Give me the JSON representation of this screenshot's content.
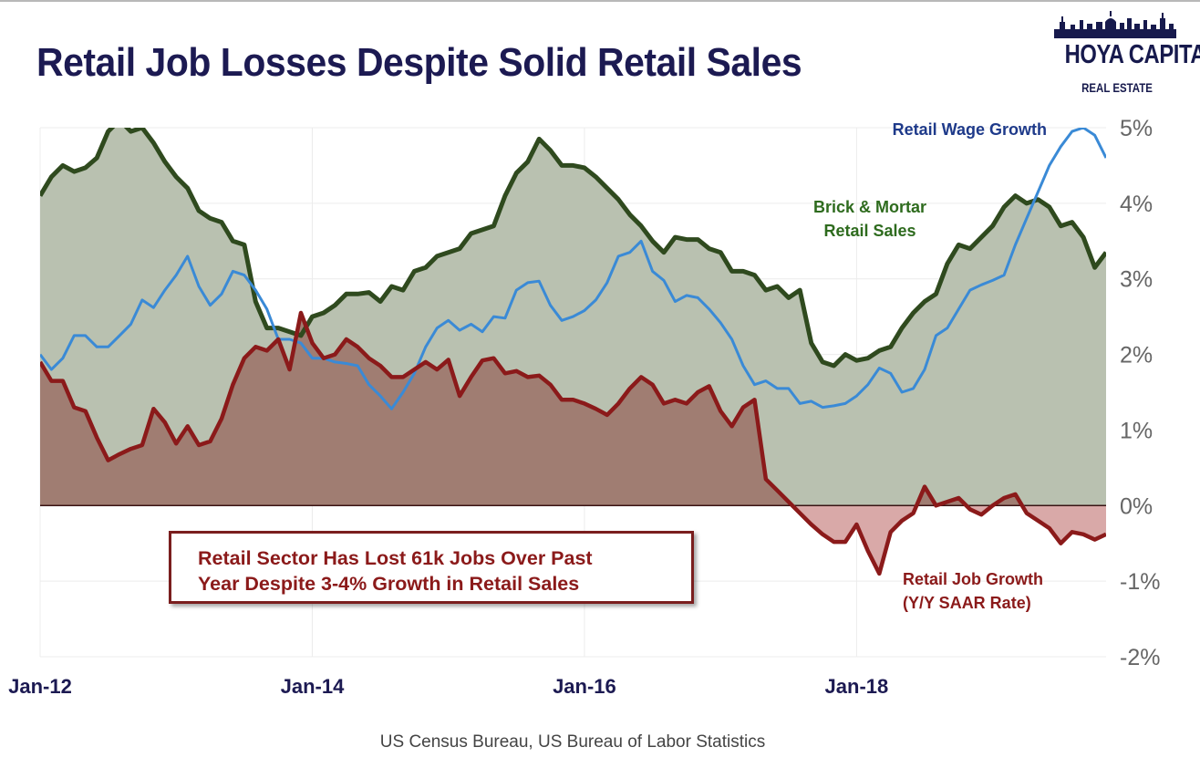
{
  "title": "Retail Job Losses Despite Solid Retail Sales",
  "logo": {
    "main": "HOYA CAPITAL",
    "sub": "REAL ESTATE"
  },
  "annotation": {
    "line1": "Retail Sector Has Lost 61k Jobs Over Past",
    "line2": "Year Despite 3-4% Growth in Retail Sales"
  },
  "source": "US Census Bureau, US Bureau of Labor Statistics",
  "colors": {
    "sales": "#2f4a1e",
    "sales_fill": "#b9c1b0",
    "wage": "#3a8ad6",
    "jobs": "#8b1a1a",
    "jobs_fill_pos": "#a07d72",
    "jobs_fill_neg": "#d9a9a8",
    "title": "#1c1a52",
    "wage_label": "#1e3a8a",
    "sales_label": "#2e6b1e"
  },
  "chart_data": {
    "type": "area",
    "x_start": "2012-01",
    "x_end": "2018-10",
    "x_ticks": [
      "Jan-12",
      "Jan-14",
      "Jan-16",
      "Jan-18"
    ],
    "x_tick_months": [
      0,
      24,
      48,
      72
    ],
    "y_axis_side": "right",
    "ylim": [
      -2,
      5
    ],
    "y_ticks": [
      -2,
      -1,
      0,
      1,
      2,
      3,
      4,
      5
    ],
    "y_tick_labels": [
      "-2%",
      "-1%",
      "0%",
      "1%",
      "2%",
      "3%",
      "4%",
      "5%"
    ],
    "grid": true,
    "series": [
      {
        "name": "Brick & Mortar Retail Sales",
        "label_lines": [
          "Brick & Mortar",
          "Retail Sales"
        ],
        "style": "filled-area",
        "values": [
          4.1,
          4.35,
          4.5,
          4.42,
          4.47,
          4.6,
          4.95,
          5.1,
          4.95,
          5.0,
          4.8,
          4.55,
          4.35,
          4.2,
          3.9,
          3.8,
          3.75,
          3.5,
          3.45,
          2.7,
          2.35,
          2.35,
          2.3,
          2.25,
          2.5,
          2.55,
          2.65,
          2.8,
          2.8,
          2.82,
          2.7,
          2.9,
          2.85,
          3.1,
          3.15,
          3.3,
          3.35,
          3.4,
          3.6,
          3.65,
          3.7,
          4.1,
          4.4,
          4.55,
          4.85,
          4.7,
          4.5,
          4.5,
          4.47,
          4.35,
          4.2,
          4.05,
          3.85,
          3.7,
          3.5,
          3.35,
          3.55,
          3.52,
          3.52,
          3.4,
          3.35,
          3.1,
          3.1,
          3.05,
          2.85,
          2.9,
          2.75,
          2.85,
          2.15,
          1.9,
          1.85,
          2.0,
          1.92,
          1.95,
          2.05,
          2.1,
          2.35,
          2.55,
          2.7,
          2.8,
          3.2,
          3.45,
          3.4,
          3.55,
          3.7,
          3.95,
          4.1,
          4.0,
          4.05,
          3.95,
          3.7,
          3.75,
          3.55,
          3.15,
          3.35
        ]
      },
      {
        "name": "Retail Wage Growth",
        "label_lines": [
          "Retail Wage Growth"
        ],
        "style": "line",
        "values": [
          2.0,
          1.8,
          1.95,
          2.25,
          2.25,
          2.1,
          2.1,
          2.25,
          2.4,
          2.72,
          2.62,
          2.85,
          3.05,
          3.3,
          2.9,
          2.65,
          2.8,
          3.1,
          3.05,
          2.85,
          2.6,
          2.2,
          2.2,
          2.15,
          1.95,
          1.95,
          1.9,
          1.88,
          1.85,
          1.6,
          1.45,
          1.28,
          1.5,
          1.75,
          2.1,
          2.35,
          2.45,
          2.32,
          2.4,
          2.3,
          2.5,
          2.48,
          2.85,
          2.95,
          2.97,
          2.65,
          2.45,
          2.5,
          2.58,
          2.72,
          2.95,
          3.3,
          3.35,
          3.5,
          3.1,
          2.98,
          2.7,
          2.78,
          2.75,
          2.6,
          2.42,
          2.2,
          1.85,
          1.6,
          1.65,
          1.55,
          1.55,
          1.35,
          1.38,
          1.3,
          1.32,
          1.35,
          1.45,
          1.6,
          1.82,
          1.75,
          1.5,
          1.55,
          1.8,
          2.25,
          2.35,
          2.6,
          2.85,
          2.92,
          2.98,
          3.05,
          3.45,
          3.8,
          4.15,
          4.5,
          4.75,
          4.95,
          5.0,
          4.9,
          4.6
        ]
      },
      {
        "name": "Retail Job Growth",
        "label_lines": [
          "Retail Job Growth",
          "(Y/Y SAAR Rate)"
        ],
        "style": "filled-line",
        "values": [
          1.9,
          1.65,
          1.65,
          1.3,
          1.25,
          0.9,
          0.6,
          0.68,
          0.75,
          0.8,
          1.28,
          1.1,
          0.82,
          1.05,
          0.8,
          0.85,
          1.15,
          1.6,
          1.95,
          2.1,
          2.05,
          2.2,
          1.8,
          2.55,
          2.15,
          1.95,
          2.0,
          2.2,
          2.1,
          1.95,
          1.85,
          1.7,
          1.7,
          1.8,
          1.9,
          1.8,
          1.93,
          1.45,
          1.7,
          1.92,
          1.95,
          1.75,
          1.78,
          1.7,
          1.72,
          1.6,
          1.4,
          1.4,
          1.35,
          1.28,
          1.2,
          1.35,
          1.55,
          1.7,
          1.6,
          1.35,
          1.4,
          1.35,
          1.5,
          1.58,
          1.25,
          1.05,
          1.3,
          1.4,
          0.35,
          0.2,
          0.05,
          -0.1,
          -0.25,
          -0.38,
          -0.48,
          -0.48,
          -0.25,
          -0.6,
          -0.9,
          -0.35,
          -0.2,
          -0.1,
          0.25,
          0.0,
          0.05,
          0.1,
          -0.05,
          -0.12,
          0.0,
          0.1,
          0.15,
          -0.1,
          -0.2,
          -0.3,
          -0.5,
          -0.35,
          -0.38,
          -0.45,
          -0.38
        ]
      }
    ]
  }
}
